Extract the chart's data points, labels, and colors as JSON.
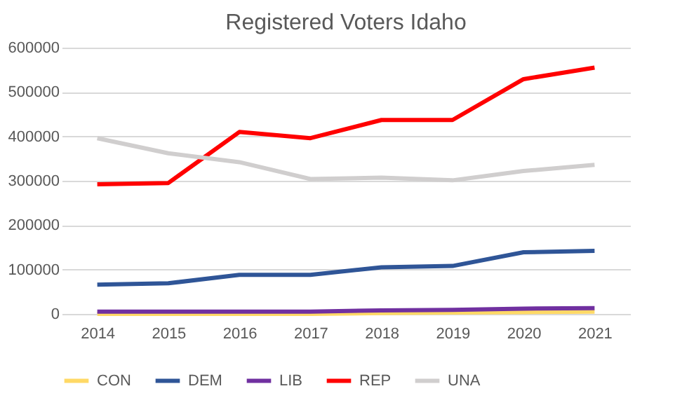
{
  "chart_data": {
    "type": "line",
    "title": "Registered Voters Idaho",
    "categories": [
      "2014",
      "2015",
      "2016",
      "2017",
      "2018",
      "2019",
      "2020",
      "2021"
    ],
    "series": [
      {
        "name": "CON",
        "color": "#ffd966",
        "values": [
          0,
          0,
          0,
          0,
          2000,
          3000,
          4000,
          5000
        ]
      },
      {
        "name": "DEM",
        "color": "#2f5597",
        "values": [
          66000,
          69000,
          88000,
          88000,
          105000,
          108000,
          139000,
          142000
        ]
      },
      {
        "name": "LIB",
        "color": "#7030a0",
        "values": [
          5000,
          5000,
          5000,
          5000,
          8000,
          9000,
          12000,
          13000
        ]
      },
      {
        "name": "REP",
        "color": "#ff0000",
        "values": [
          292000,
          295000,
          410000,
          396000,
          437000,
          437000,
          529000,
          555000
        ]
      },
      {
        "name": "UNA",
        "color": "#d0cece",
        "values": [
          396000,
          362000,
          342000,
          304000,
          307000,
          301000,
          322000,
          336000
        ]
      }
    ],
    "ylim": [
      0,
      600000
    ],
    "yticks": [
      0,
      100000,
      200000,
      300000,
      400000,
      500000,
      600000
    ],
    "grid": "y",
    "legend": "bottom",
    "marker": "none",
    "line_style": "solid"
  }
}
